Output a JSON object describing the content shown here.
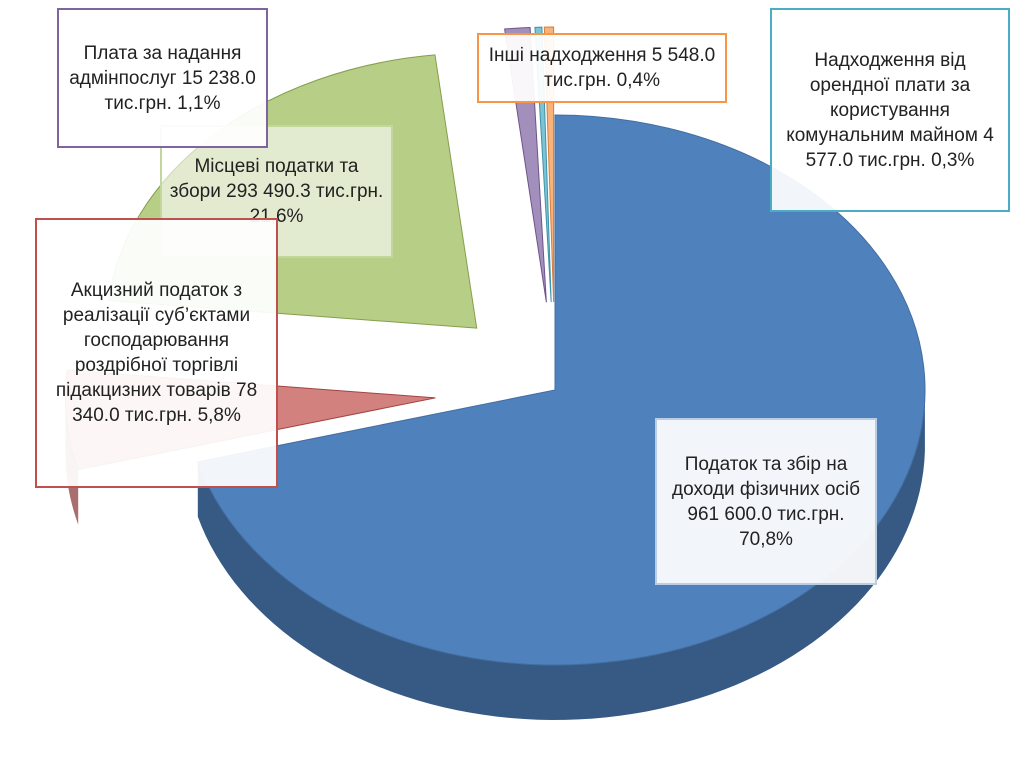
{
  "chart_data": {
    "type": "pie",
    "categories": [
      "Податок та збір на доходи фізичних осіб",
      "Акцизний податок з реалізації суб’єктами господарювання роздрібної торгівлі підакцизних товарів",
      "Місцеві податки та збори",
      "Плата за надання адмінпослуг",
      "Надходження від орендної плати за користування комунальним майном",
      "Інші надходження"
    ],
    "values": [
      70.8,
      5.8,
      21.6,
      1.1,
      0.3,
      0.4
    ],
    "value_labels": [
      "70,8%",
      "5,8%",
      "21,6%",
      "1,1%",
      "0,3%",
      "0,4%"
    ],
    "amounts": [
      961600.0,
      78340.0,
      293490.3,
      15238.0,
      4577.0,
      5548.0
    ],
    "amount_labels": [
      "961 600.0 тис.грн.",
      "78 340.0 тис.грн.",
      "293 490.3 тис.грн.",
      "15 238.0 тис.грн.",
      "4 577.0 тис.грн.",
      "5 548.0 тис.грн."
    ],
    "colors": [
      "#4f81bd",
      "#c0504d",
      "#9bbb59",
      "#8064a2",
      "#4bacc6",
      "#f79646"
    ]
  }
}
